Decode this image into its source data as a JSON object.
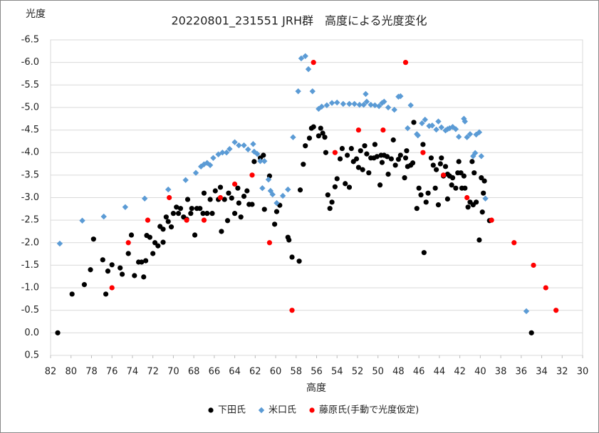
{
  "chart_data": {
    "type": "scatter",
    "title": "20220801_231551  JRH群　高度による光度変化",
    "y_label": "光度",
    "x_label": "高度",
    "xlim": [
      82,
      30
    ],
    "xticks": [
      82,
      80,
      78,
      76,
      74,
      72,
      70,
      68,
      66,
      64,
      62,
      60,
      58,
      56,
      54,
      52,
      50,
      48,
      46,
      44,
      42,
      40,
      38,
      36,
      34,
      32,
      30
    ],
    "ylim": [
      0.5,
      -6.5
    ],
    "yticks": [
      {
        "value": -6.5,
        "label": "-6.5"
      },
      {
        "value": -6,
        "label": "-6.0"
      },
      -5.5,
      {
        "value": -5,
        "label": "-5.0"
      },
      -4.5,
      {
        "value": -4,
        "label": "-4.0"
      },
      -3.5,
      {
        "value": -3,
        "label": "-3.0"
      },
      -2.5,
      {
        "value": -2,
        "label": "-2.0"
      },
      -1.5,
      {
        "value": -1,
        "label": "-1.0"
      },
      -0.5,
      {
        "value": 0,
        "label": "0.0"
      },
      0.5
    ],
    "grid": true,
    "legend": "bottom",
    "series": [
      {
        "name": "下田氏",
        "color": "#000000",
        "marker": "circle",
        "x": [
          81.3,
          79.9,
          78.7,
          78.1,
          77.8,
          76.9,
          76.6,
          76.4,
          76.0,
          75.2,
          75.0,
          74.4,
          74.1,
          73.8,
          73.4,
          73.1,
          72.9,
          72.7,
          72.6,
          72.3,
          72.0,
          71.8,
          71.5,
          71.3,
          71.0,
          71.0,
          70.7,
          70.5,
          70.2,
          70.0,
          69.7,
          69.5,
          69.3,
          69.0,
          68.7,
          68.6,
          68.3,
          68.2,
          67.9,
          67.7,
          67.4,
          67.1,
          67.0,
          66.7,
          66.4,
          66.2,
          65.9,
          65.6,
          65.4,
          65.3,
          65.0,
          64.7,
          64.6,
          64.3,
          64.0,
          63.7,
          63.6,
          63.4,
          63.1,
          62.8,
          62.6,
          62.3,
          62.1,
          61.5,
          61.2,
          61.1,
          60.6,
          60.1,
          59.9,
          59.6,
          58.8,
          58.7,
          58.4,
          57.7,
          57.6,
          57.3,
          57.1,
          56.7,
          56.5,
          56.3,
          55.8,
          55.6,
          55.4,
          55.2,
          55.1,
          54.9,
          54.7,
          54.5,
          54.2,
          54.0,
          53.7,
          53.5,
          53.2,
          53.0,
          52.8,
          52.6,
          52.4,
          52.1,
          51.9,
          51.7,
          51.5,
          51.3,
          51.1,
          50.9,
          50.7,
          50.4,
          50.3,
          50.1,
          49.8,
          49.7,
          49.6,
          49.4,
          49.1,
          49.0,
          48.7,
          48.5,
          48.3,
          48.0,
          47.8,
          47.4,
          47.3,
          47.2,
          47.1,
          46.8,
          46.6,
          46.5,
          46.2,
          46.0,
          45.8,
          45.6,
          45.5,
          45.3,
          45.1,
          44.8,
          44.6,
          44.4,
          44.3,
          44.1,
          43.9,
          43.8,
          43.6,
          43.4,
          43.2,
          43.2,
          43.0,
          42.8,
          42.7,
          42.4,
          42.2,
          42.1,
          41.9,
          41.8,
          41.6,
          41.5,
          41.2,
          41.0,
          40.8,
          40.7,
          40.6,
          40.4,
          40.1,
          39.9,
          39.8,
          39.7,
          39.6,
          39.1,
          35.0
        ],
        "values": [
          0.0,
          -0.86,
          -1.07,
          -1.4,
          -2.08,
          -1.62,
          -0.86,
          -1.37,
          -1.51,
          -1.44,
          -1.3,
          -1.76,
          -2.17,
          -1.27,
          -1.57,
          -1.57,
          -1.24,
          -1.6,
          -2.16,
          -2.12,
          -1.76,
          -2.0,
          -1.93,
          -2.36,
          -2.3,
          -2.01,
          -2.57,
          -2.47,
          -2.35,
          -2.65,
          -2.79,
          -2.65,
          -2.76,
          -2.57,
          -2.52,
          -2.96,
          -2.65,
          -2.76,
          -2.17,
          -2.76,
          -2.76,
          -2.65,
          -3.1,
          -2.65,
          -2.96,
          -2.65,
          -3.15,
          -2.96,
          -3.23,
          -2.25,
          -2.96,
          -2.49,
          -3.1,
          -2.99,
          -2.65,
          -3.21,
          -2.88,
          -2.57,
          -3.03,
          -3.15,
          -2.85,
          -2.85,
          -3.8,
          -3.88,
          -3.94,
          -2.74,
          -3.48,
          -2.41,
          -2.69,
          -2.83,
          -2.12,
          -2.06,
          -1.68,
          -1.59,
          -3.17,
          -3.74,
          -4.15,
          -4.32,
          -4.54,
          -4.57,
          -4.37,
          -4.54,
          -4.43,
          -4.34,
          -4.0,
          -3.06,
          -2.76,
          -2.9,
          -3.24,
          -3.42,
          -3.86,
          -4.09,
          -3.31,
          -3.94,
          -3.23,
          -4.09,
          -3.8,
          -3.86,
          -3.67,
          -4.04,
          -3.62,
          -4.15,
          -3.97,
          -3.55,
          -3.88,
          -3.88,
          -4.18,
          -3.91,
          -3.28,
          -3.94,
          -3.78,
          -3.94,
          -3.91,
          -3.52,
          -3.86,
          -4.28,
          -3.72,
          -3.85,
          -3.94,
          -3.44,
          -3.88,
          -4.04,
          -3.69,
          -3.72,
          -3.77,
          -4.67,
          -2.76,
          -3.21,
          -3.06,
          -4.18,
          -1.78,
          -2.9,
          -3.1,
          -3.88,
          -3.72,
          -3.21,
          -3.62,
          -2.84,
          -3.75,
          -3.88,
          -3.48,
          -3.69,
          -3.52,
          -2.97,
          -3.48,
          -3.28,
          -3.44,
          -3.21,
          -3.55,
          -3.8,
          -3.55,
          -3.21,
          -3.48,
          -3.21,
          -2.79,
          -2.9,
          -3.8,
          -2.84,
          -3.55,
          -2.9,
          -2.06,
          -3.44,
          -2.68,
          -3.1,
          -3.37,
          -2.49,
          0.0
        ]
      },
      {
        "name": "米口氏",
        "color": "#5b9bd5",
        "marker": "diamond",
        "x": [
          81.1,
          78.9,
          76.8,
          74.7,
          72.8,
          70.5,
          68.8,
          67.8,
          67.3,
          67.0,
          66.7,
          66.4,
          66.1,
          65.6,
          65.2,
          64.8,
          64.5,
          64.0,
          63.6,
          63.1,
          62.7,
          62.2,
          62.1,
          61.8,
          61.5,
          61.1,
          61.3,
          60.7,
          60.5,
          60.3,
          59.9,
          59.3,
          58.8,
          58.3,
          57.8,
          57.5,
          57.1,
          56.8,
          56.4,
          55.8,
          55.5,
          55.0,
          54.5,
          54.0,
          53.4,
          52.8,
          52.3,
          51.8,
          51.4,
          51.2,
          51.1,
          50.7,
          50.3,
          49.9,
          49.6,
          49.4,
          49.0,
          48.4,
          48.0,
          47.8,
          47.1,
          46.8,
          46.2,
          46.1,
          45.7,
          45.4,
          45.0,
          44.7,
          44.3,
          44.1,
          43.8,
          43.4,
          43.2,
          43.0,
          42.7,
          42.4,
          42.1,
          41.6,
          41.5,
          41.3,
          41.0,
          40.7,
          40.5,
          40.4,
          40.1,
          39.9,
          39.5,
          35.5
        ],
        "values": [
          -1.98,
          -2.49,
          -2.58,
          -2.79,
          -2.98,
          -3.18,
          -3.39,
          -3.55,
          -3.69,
          -3.74,
          -3.77,
          -3.72,
          -3.88,
          -3.96,
          -4.0,
          -4.0,
          -4.08,
          -4.23,
          -4.16,
          -4.16,
          -4.07,
          -4.19,
          -4.02,
          -3.97,
          -3.81,
          -3.81,
          -3.21,
          -3.4,
          -3.15,
          -3.07,
          -2.88,
          -3.04,
          -3.18,
          -4.34,
          -5.36,
          -6.09,
          -6.14,
          -5.85,
          -5.36,
          -4.97,
          -5.02,
          -5.05,
          -5.1,
          -5.11,
          -5.08,
          -5.08,
          -5.08,
          -5.06,
          -5.06,
          -5.3,
          -5.13,
          -5.06,
          -5.05,
          -5.03,
          -5.1,
          -5.13,
          -5.0,
          -4.95,
          -5.24,
          -5.25,
          -4.54,
          -5.05,
          -4.41,
          -4.38,
          -4.65,
          -4.73,
          -4.59,
          -4.6,
          -4.51,
          -4.69,
          -4.56,
          -4.49,
          -4.52,
          -4.54,
          -4.57,
          -4.52,
          -4.35,
          -4.75,
          -4.69,
          -4.34,
          -4.41,
          -3.92,
          -3.99,
          -4.4,
          -4.45,
          -3.92,
          -2.98,
          -0.48
        ]
      },
      {
        "name": "藤原氏(手動で光度仮定)",
        "color": "#ff0000",
        "marker": "circle",
        "x": [
          76.0,
          74.4,
          72.5,
          70.4,
          68.7,
          67.0,
          65.4,
          64.0,
          62.3,
          60.6,
          58.4,
          56.3,
          54.2,
          51.9,
          49.5,
          47.3,
          45.6,
          43.6,
          41.3,
          38.9,
          36.7,
          34.8,
          33.6,
          32.6
        ],
        "values": [
          -1.0,
          -2.0,
          -2.5,
          -3.0,
          -2.5,
          -2.5,
          -3.0,
          -3.3,
          -3.5,
          -2.0,
          -0.5,
          -6.0,
          -4.0,
          -4.5,
          -4.5,
          -6.0,
          -4.0,
          -3.5,
          -3.0,
          -2.5,
          -2.0,
          -1.5,
          -1.0,
          -0.5
        ]
      }
    ]
  }
}
